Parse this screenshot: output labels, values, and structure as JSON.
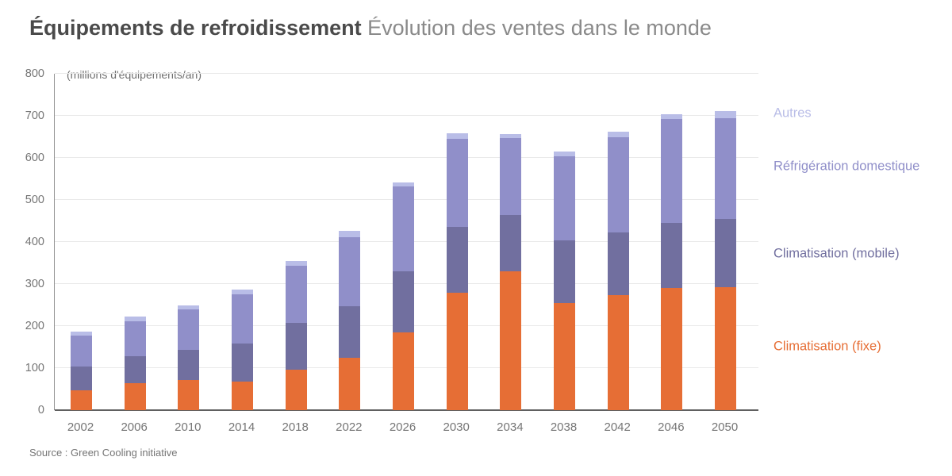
{
  "header": {
    "title_bold": "Équipements de refroidissement",
    "title_light": "Évolution des ventes dans le monde"
  },
  "source": "Source : Green Cooling initiative",
  "chart_data": {
    "type": "bar",
    "stacked": true,
    "title": "Équipements de refroidissement — Évolution des ventes dans le monde",
    "unit_label": "(millions d'équipements/an)",
    "xlabel": "",
    "ylabel": "millions d'équipements/an",
    "grid": true,
    "legend_position": "right",
    "categories": [
      "2002",
      "2006",
      "2010",
      "2014",
      "2018",
      "2022",
      "2026",
      "2030",
      "2034",
      "2038",
      "2042",
      "2046",
      "2050"
    ],
    "y_axis": {
      "min": 0,
      "max": 800,
      "step": 100,
      "ticks": [
        0,
        100,
        200,
        300,
        400,
        500,
        600,
        700,
        800
      ]
    },
    "series": [
      {
        "name": "Climatisation (fixe)",
        "color": "#e66e35",
        "values": [
          47,
          65,
          72,
          68,
          96,
          125,
          185,
          280,
          330,
          255,
          273,
          290,
          292
        ]
      },
      {
        "name": "Climatisation (mobile)",
        "color": "#716f9f",
        "values": [
          57,
          64,
          72,
          90,
          112,
          123,
          145,
          155,
          135,
          148,
          150,
          156,
          162
        ]
      },
      {
        "name": "Réfrigération domestique",
        "color": "#908fc9",
        "values": [
          74,
          83,
          96,
          118,
          135,
          164,
          202,
          210,
          183,
          200,
          226,
          246,
          240
        ]
      },
      {
        "name": "Autres",
        "color": "#b9bde7",
        "values": [
          9,
          10,
          10,
          10,
          11,
          14,
          9,
          13,
          8,
          12,
          13,
          12,
          18
        ]
      }
    ],
    "totals": [
      187,
      222,
      250,
      286,
      354,
      426,
      541,
      658,
      656,
      615,
      662,
      704,
      712
    ],
    "legend_order_top_to_bottom": [
      "Autres",
      "Réfrigération domestique",
      "Climatisation (mobile)",
      "Climatisation (fixe)"
    ]
  }
}
